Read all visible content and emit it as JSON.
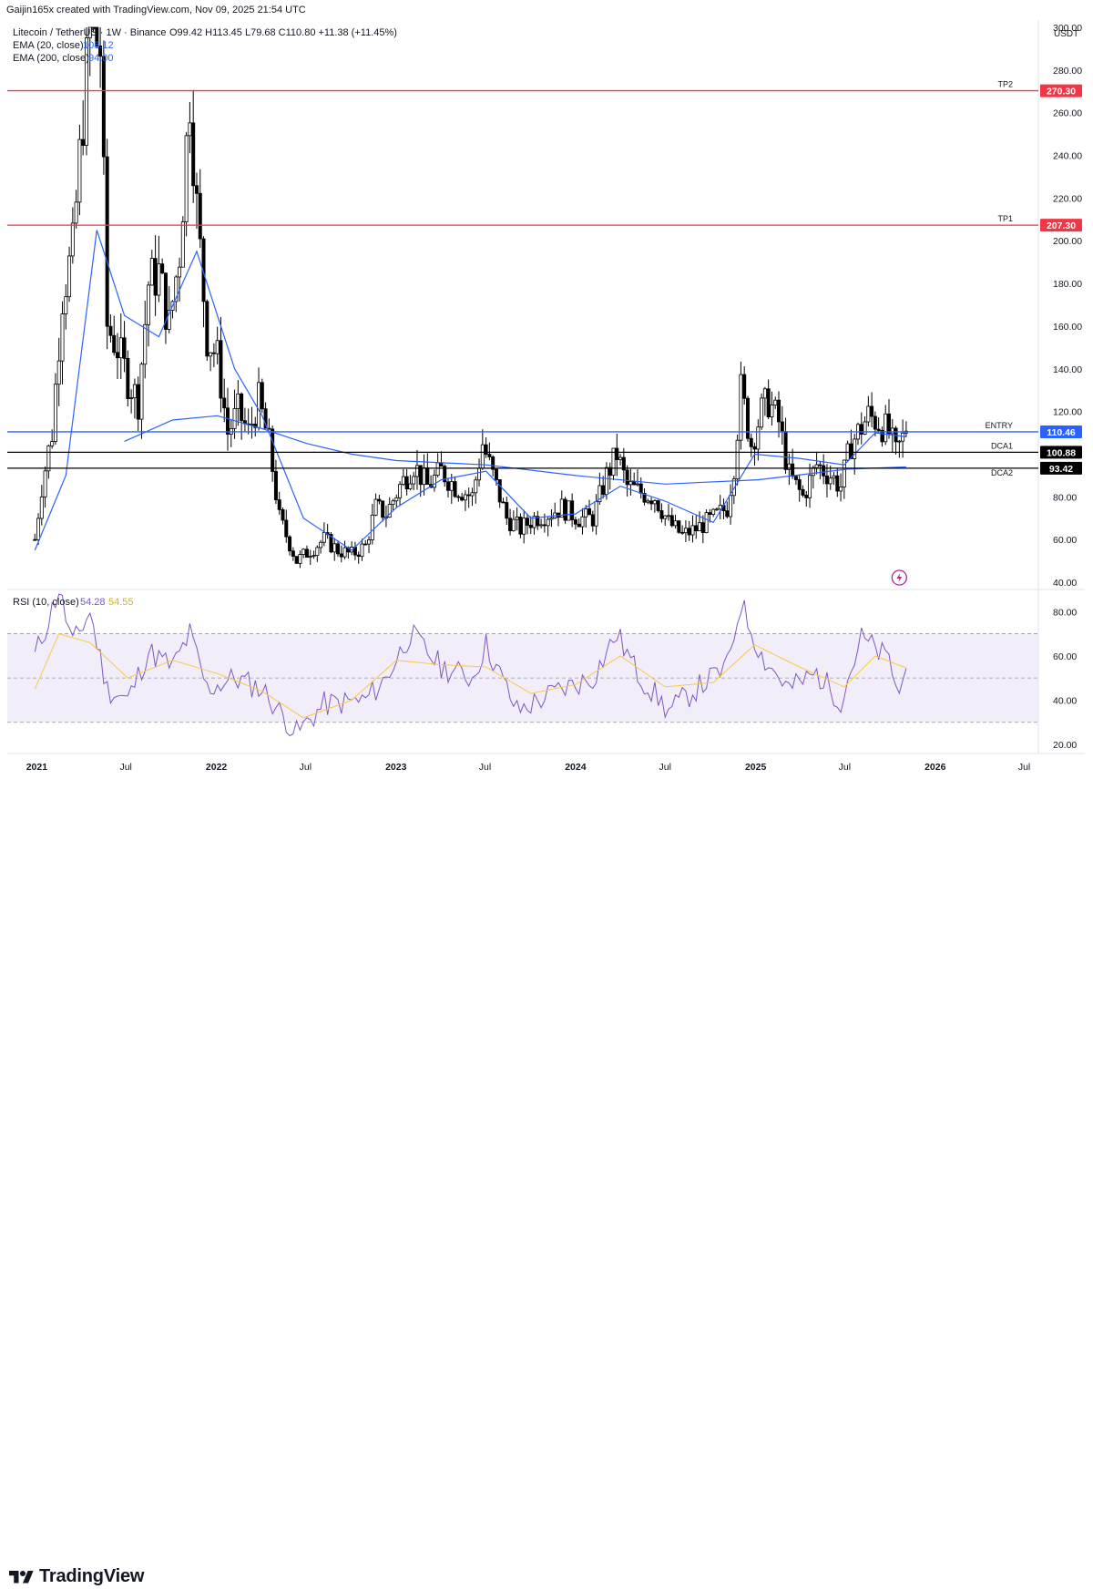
{
  "header": {
    "attribution": "Gaijin165x created with TradingView.com, Nov 09, 2025 21:54 UTC"
  },
  "legend": {
    "symbol": "Litecoin / TetherUS · 1W · Binance",
    "ohlc": "O99.42 H113.45 L79.68 C110.80 +11.38 (+11.45%)",
    "ema20_label": "EMA (20, close)",
    "ema20_value": "108.12",
    "ema200_label": "EMA (200, close)",
    "ema200_value": "94.00"
  },
  "rsi_legend": {
    "label": "RSI (10, close)",
    "value": "54.28",
    "ma_value": "54.55"
  },
  "price_axis": {
    "currency": "USDT",
    "ticks": [
      "300.00",
      "280.00",
      "260.00",
      "240.00",
      "220.00",
      "200.00",
      "180.00",
      "160.00",
      "140.00",
      "120.00",
      "100.00",
      "80.00",
      "60.00",
      "40.00"
    ]
  },
  "rsi_axis": {
    "ticks": [
      "80.00",
      "60.00",
      "40.00",
      "20.00"
    ]
  },
  "time_axis": {
    "ticks": [
      "2021",
      "Jul",
      "2022",
      "Jul",
      "2023",
      "Jul",
      "2024",
      "Jul",
      "2025",
      "Jul",
      "2026",
      "Jul"
    ]
  },
  "levels": [
    {
      "name": "TP2",
      "label": "270.30",
      "color": "#f23645"
    },
    {
      "name": "TP1",
      "label": "207.30",
      "color": "#f23645"
    },
    {
      "name": "ENTRY",
      "label": "110.46",
      "color": "#2962ff"
    },
    {
      "name": "",
      "label": "100.88",
      "color": "#000000"
    },
    {
      "name": "DCA1",
      "label": "",
      "color": "#000000"
    },
    {
      "name": "DCA2",
      "label": "93.42",
      "color": "#000000"
    }
  ],
  "footer": {
    "brand": "TradingView"
  },
  "colors": {
    "up": "#ffffff",
    "down": "#000000",
    "ema": "#2962ff",
    "rsi": "#7e57c2",
    "rsi_ma": "#f7c948",
    "rsi_band": "#7e57c2"
  },
  "chart_data": {
    "type": "candlestick",
    "title": "Litecoin / TetherUS · 1W · Binance",
    "ylim": [
      40,
      300
    ],
    "rsi_ylim": [
      20,
      90
    ],
    "x": [
      "2021",
      "Jul",
      "2022",
      "Jul",
      "2023",
      "Jul",
      "2024",
      "Jul",
      "2025",
      "Jul",
      "2026",
      "Jul"
    ],
    "price_path": [
      [
        "2020-12-28",
        60
      ],
      [
        "2021-01-11",
        85
      ],
      [
        "2021-02-01",
        110
      ],
      [
        "2021-02-22",
        175
      ],
      [
        "2021-03-15",
        195
      ],
      [
        "2021-04-05",
        260
      ],
      [
        "2021-04-19",
        300
      ],
      [
        "2021-05-10",
        290
      ],
      [
        "2021-05-24",
        160
      ],
      [
        "2021-06-14",
        150
      ],
      [
        "2021-07-05",
        135
      ],
      [
        "2021-07-26",
        125
      ],
      [
        "2021-08-16",
        180
      ],
      [
        "2021-09-06",
        185
      ],
      [
        "2021-09-27",
        160
      ],
      [
        "2021-10-18",
        195
      ],
      [
        "2021-11-08",
        270
      ],
      [
        "2021-11-22",
        215
      ],
      [
        "2021-12-13",
        155
      ],
      [
        "2022-01-03",
        145
      ],
      [
        "2022-01-24",
        110
      ],
      [
        "2022-02-14",
        120
      ],
      [
        "2022-03-07",
        110
      ],
      [
        "2022-03-28",
        125
      ],
      [
        "2022-04-18",
        105
      ],
      [
        "2022-05-09",
        70
      ],
      [
        "2022-06-13",
        50
      ],
      [
        "2022-07-11",
        55
      ],
      [
        "2022-08-08",
        60
      ],
      [
        "2022-09-05",
        55
      ],
      [
        "2022-10-03",
        53
      ],
      [
        "2022-10-31",
        57
      ],
      [
        "2022-11-21",
        75
      ],
      [
        "2022-12-12",
        72
      ],
      [
        "2023-01-09",
        85
      ],
      [
        "2023-02-06",
        95
      ],
      [
        "2023-03-06",
        85
      ],
      [
        "2023-04-03",
        92
      ],
      [
        "2023-05-01",
        85
      ],
      [
        "2023-06-05",
        80
      ],
      [
        "2023-06-26",
        105
      ],
      [
        "2023-07-10",
        95
      ],
      [
        "2023-08-14",
        70
      ],
      [
        "2023-09-11",
        65
      ],
      [
        "2023-10-09",
        70
      ],
      [
        "2023-11-06",
        72
      ],
      [
        "2023-12-04",
        75
      ],
      [
        "2024-01-08",
        70
      ],
      [
        "2024-02-05",
        70
      ],
      [
        "2024-03-04",
        90
      ],
      [
        "2024-03-25",
        100
      ],
      [
        "2024-04-15",
        85
      ],
      [
        "2024-05-13",
        82
      ],
      [
        "2024-06-10",
        80
      ],
      [
        "2024-07-08",
        68
      ],
      [
        "2024-08-05",
        62
      ],
      [
        "2024-09-02",
        65
      ],
      [
        "2024-10-07",
        70
      ],
      [
        "2024-11-04",
        75
      ],
      [
        "2024-11-18",
        95
      ],
      [
        "2024-12-02",
        130
      ],
      [
        "2024-12-23",
        105
      ],
      [
        "2025-01-13",
        120
      ],
      [
        "2025-01-27",
        125
      ],
      [
        "2025-02-17",
        115
      ],
      [
        "2025-03-10",
        90
      ],
      [
        "2025-04-07",
        80
      ],
      [
        "2025-05-05",
        95
      ],
      [
        "2025-06-02",
        90
      ],
      [
        "2025-06-23",
        85
      ],
      [
        "2025-07-14",
        105
      ],
      [
        "2025-07-28",
        110
      ],
      [
        "2025-08-18",
        118
      ],
      [
        "2025-09-08",
        115
      ],
      [
        "2025-09-29",
        110
      ],
      [
        "2025-10-13",
        100
      ],
      [
        "2025-11-03",
        110.8
      ]
    ],
    "ema20_path": [
      [
        "2020-12-28",
        55
      ],
      [
        "2021-03-01",
        90
      ],
      [
        "2021-05-03",
        205
      ],
      [
        "2021-06-28",
        165
      ],
      [
        "2021-09-06",
        155
      ],
      [
        "2021-11-22",
        195
      ],
      [
        "2022-02-07",
        140
      ],
      [
        "2022-04-04",
        118
      ],
      [
        "2022-06-27",
        70
      ],
      [
        "2022-10-03",
        55
      ],
      [
        "2023-01-02",
        75
      ],
      [
        "2023-04-03",
        88
      ],
      [
        "2023-07-03",
        92
      ],
      [
        "2023-10-02",
        70
      ],
      [
        "2024-01-01",
        72
      ],
      [
        "2024-04-01",
        85
      ],
      [
        "2024-07-01",
        78
      ],
      [
        "2024-10-07",
        68
      ],
      [
        "2024-12-30",
        100
      ],
      [
        "2025-03-31",
        98
      ],
      [
        "2025-06-30",
        95
      ],
      [
        "2025-09-01",
        110
      ],
      [
        "2025-11-03",
        108.12
      ]
    ],
    "ema200_path": [
      [
        "2021-06-28",
        106
      ],
      [
        "2021-10-04",
        116
      ],
      [
        "2022-01-03",
        118
      ],
      [
        "2022-04-04",
        112
      ],
      [
        "2022-07-04",
        105
      ],
      [
        "2022-10-03",
        100
      ],
      [
        "2023-01-02",
        97
      ],
      [
        "2023-07-03",
        95
      ],
      [
        "2024-01-01",
        90
      ],
      [
        "2024-07-01",
        86
      ],
      [
        "2025-01-06",
        88
      ],
      [
        "2025-07-07",
        93
      ],
      [
        "2025-11-03",
        94.0
      ]
    ],
    "levels": {
      "TP2": 270.3,
      "TP1": 207.3,
      "ENTRY": 110.46,
      "DCA1": 100.88,
      "DCA2": 93.42
    },
    "rsi_path": [
      [
        "2020-12-28",
        60
      ],
      [
        "2021-01-18",
        72
      ],
      [
        "2021-02-15",
        90
      ],
      [
        "2021-03-15",
        65
      ],
      [
        "2021-04-19",
        80
      ],
      [
        "2021-05-24",
        45
      ],
      [
        "2021-07-05",
        40
      ],
      [
        "2021-08-16",
        62
      ],
      [
        "2021-10-04",
        55
      ],
      [
        "2021-11-08",
        70
      ],
      [
        "2021-12-13",
        45
      ],
      [
        "2022-02-07",
        50
      ],
      [
        "2022-04-04",
        45
      ],
      [
        "2022-06-13",
        25
      ],
      [
        "2022-08-08",
        38
      ],
      [
        "2022-10-31",
        40
      ],
      [
        "2022-12-12",
        50
      ],
      [
        "2023-01-30",
        70
      ],
      [
        "2023-04-03",
        55
      ],
      [
        "2023-06-05",
        50
      ],
      [
        "2023-07-03",
        65
      ],
      [
        "2023-09-04",
        35
      ],
      [
        "2023-12-04",
        45
      ],
      [
        "2024-02-05",
        50
      ],
      [
        "2024-03-25",
        70
      ],
      [
        "2024-05-06",
        52
      ],
      [
        "2024-07-08",
        35
      ],
      [
        "2024-09-02",
        45
      ],
      [
        "2024-11-04",
        55
      ],
      [
        "2024-12-02",
        84
      ],
      [
        "2025-01-13",
        60
      ],
      [
        "2025-03-10",
        45
      ],
      [
        "2025-05-05",
        52
      ],
      [
        "2025-06-23",
        40
      ],
      [
        "2025-08-04",
        68
      ],
      [
        "2025-09-29",
        58
      ],
      [
        "2025-10-20",
        42
      ],
      [
        "2025-11-03",
        54.28
      ]
    ],
    "rsi_ma_path": [
      [
        "2020-12-28",
        45
      ],
      [
        "2021-02-15",
        70
      ],
      [
        "2021-04-19",
        66
      ],
      [
        "2021-07-05",
        50
      ],
      [
        "2021-10-04",
        58
      ],
      [
        "2022-01-03",
        52
      ],
      [
        "2022-04-04",
        44
      ],
      [
        "2022-06-27",
        32
      ],
      [
        "2022-10-03",
        40
      ],
      [
        "2023-01-02",
        58
      ],
      [
        "2023-04-03",
        56
      ],
      [
        "2023-07-03",
        55
      ],
      [
        "2023-10-02",
        43
      ],
      [
        "2024-01-01",
        47
      ],
      [
        "2024-04-01",
        60
      ],
      [
        "2024-07-01",
        46
      ],
      [
        "2024-10-07",
        48
      ],
      [
        "2024-12-30",
        65
      ],
      [
        "2025-03-31",
        55
      ],
      [
        "2025-06-30",
        46
      ],
      [
        "2025-09-01",
        60
      ],
      [
        "2025-11-03",
        54.55
      ]
    ],
    "rsi_bands": [
      30,
      50,
      70
    ]
  }
}
